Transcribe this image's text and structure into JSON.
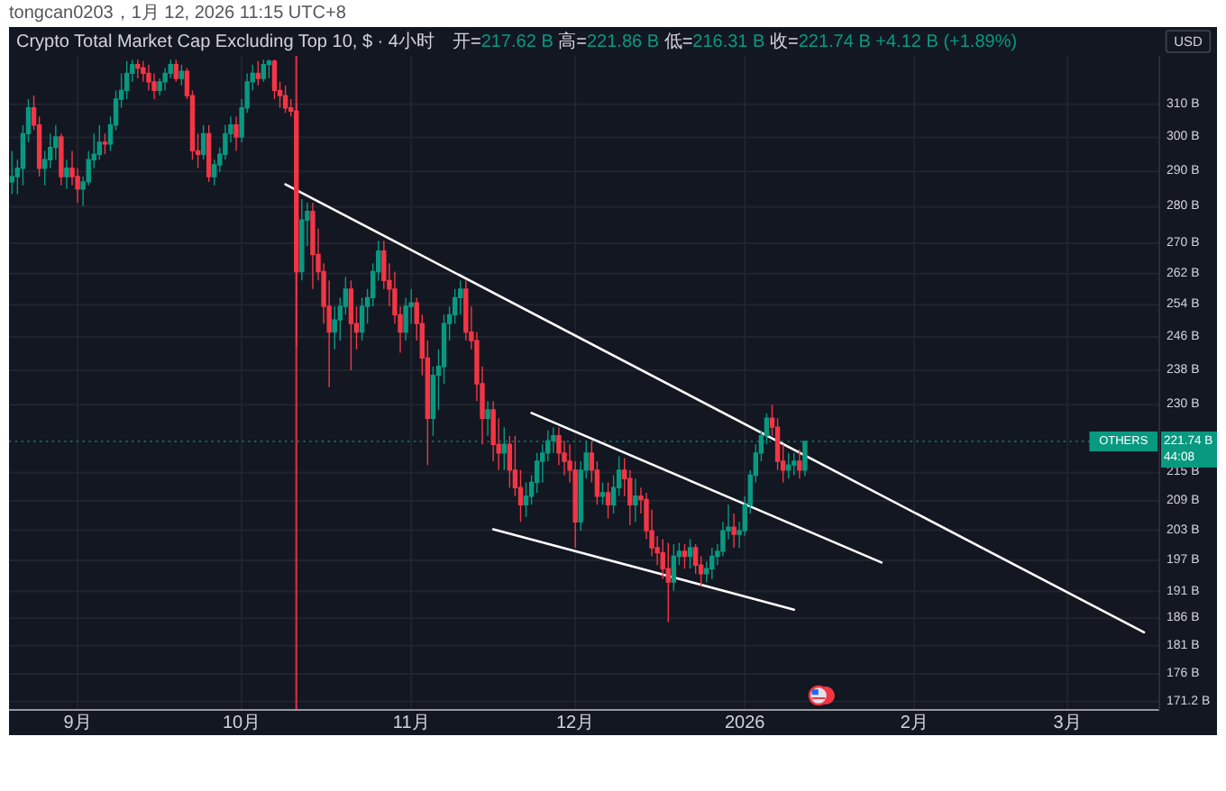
{
  "chart_data": {
    "type": "candlestick",
    "title": "Crypto Total Market Cap Excluding Top 10, $ · 4小时",
    "subtitle": "开=217.62 B 高=221.86 B 低=216.31 B 收=221.74 B +4.12 B (+1.89%)",
    "ylabel": "USD",
    "annotations": [
      "tongcan0203，1月 12, 2026 11:15 UTC+8",
      "221.74 B",
      "44:08"
    ],
    "x": [
      "2025-08-20",
      "2025-08-21",
      "2025-08-22",
      "2025-08-23",
      "2025-08-24",
      "2025-08-25",
      "2025-08-26",
      "2025-08-27",
      "2025-08-28",
      "2025-08-29",
      "2025-08-30",
      "2025-08-31",
      "2025-09-01",
      "2025-09-02",
      "2025-09-03",
      "2025-09-04",
      "2025-09-05",
      "2025-09-06",
      "2025-09-07",
      "2025-09-08",
      "2025-09-09",
      "2025-09-10",
      "2025-09-11",
      "2025-09-12",
      "2025-09-13",
      "2025-09-14",
      "2025-09-15",
      "2025-09-16",
      "2025-09-17",
      "2025-09-18",
      "2025-09-19",
      "2025-09-20",
      "2025-09-21",
      "2025-09-22",
      "2025-09-23",
      "2025-09-24",
      "2025-09-25",
      "2025-09-26",
      "2025-09-27",
      "2025-09-28",
      "2025-09-29",
      "2025-09-30",
      "2025-10-01",
      "2025-10-02",
      "2025-10-03",
      "2025-10-04",
      "2025-10-05",
      "2025-10-06",
      "2025-10-07",
      "2025-10-08",
      "2025-10-09",
      "2025-10-10",
      "2025-10-11",
      "2025-10-12",
      "2025-10-13",
      "2025-10-14",
      "2025-10-15",
      "2025-10-16",
      "2025-10-17",
      "2025-10-18",
      "2025-10-19",
      "2025-10-20",
      "2025-10-21",
      "2025-10-22",
      "2025-10-23",
      "2025-10-24",
      "2025-10-25",
      "2025-10-26",
      "2025-10-27",
      "2025-10-28",
      "2025-10-29",
      "2025-10-30",
      "2025-10-31",
      "2025-11-01",
      "2025-11-02",
      "2025-11-03",
      "2025-11-04",
      "2025-11-05",
      "2025-11-06",
      "2025-11-07",
      "2025-11-08",
      "2025-11-09",
      "2025-11-10",
      "2025-11-11",
      "2025-11-12",
      "2025-11-13",
      "2025-11-14",
      "2025-11-15",
      "2025-11-16",
      "2025-11-17",
      "2025-11-18",
      "2025-11-19",
      "2025-11-20",
      "2025-11-21",
      "2025-11-22",
      "2025-11-23",
      "2025-11-24",
      "2025-11-25",
      "2025-11-26",
      "2025-11-27",
      "2025-11-28",
      "2025-11-29",
      "2025-11-30",
      "2025-12-01",
      "2025-12-02",
      "2025-12-03",
      "2025-12-04",
      "2025-12-05",
      "2025-12-06",
      "2025-12-07",
      "2025-12-08",
      "2025-12-09",
      "2025-12-10",
      "2025-12-11",
      "2025-12-12",
      "2025-12-13",
      "2025-12-14",
      "2025-12-15",
      "2025-12-16",
      "2025-12-17",
      "2025-12-18",
      "2025-12-19",
      "2025-12-20",
      "2025-12-21",
      "2025-12-22",
      "2025-12-23",
      "2025-12-24",
      "2025-12-25",
      "2025-12-26",
      "2025-12-27",
      "2025-12-28",
      "2025-12-29",
      "2025-12-30",
      "2025-12-31",
      "2026-01-01",
      "2026-01-02",
      "2026-01-03",
      "2026-01-04",
      "2026-01-05",
      "2026-01-06",
      "2026-01-07",
      "2026-01-08",
      "2026-01-09",
      "2026-01-10",
      "2026-01-11",
      "2026-01-12"
    ],
    "ohlc": [
      [
        287.0,
        296.0,
        283.5,
        288.5
      ],
      [
        288.5,
        293.4,
        283.5,
        290.9
      ],
      [
        290.9,
        303.7,
        286.0,
        301.1
      ],
      [
        301.1,
        311.6,
        298.5,
        308.9
      ],
      [
        308.9,
        312.7,
        302.1,
        303.7
      ],
      [
        303.7,
        306.3,
        288.5,
        290.9
      ],
      [
        290.9,
        296.0,
        286.0,
        293.4
      ],
      [
        293.4,
        301.1,
        290.9,
        297.0
      ],
      [
        297.0,
        303.7,
        293.4,
        300.1
      ],
      [
        300.1,
        301.1,
        286.0,
        288.5
      ],
      [
        288.5,
        293.4,
        285.0,
        290.9
      ],
      [
        290.9,
        296.0,
        286.0,
        288.5
      ],
      [
        288.5,
        290.9,
        281.1,
        285.0
      ],
      [
        285.0,
        288.5,
        280.2,
        287.0
      ],
      [
        287.0,
        296.0,
        286.0,
        293.4
      ],
      [
        293.4,
        301.1,
        290.9,
        295.0
      ],
      [
        295.0,
        303.7,
        293.4,
        298.5
      ],
      [
        298.5,
        301.1,
        295.0,
        298.0
      ],
      [
        298.0,
        306.3,
        296.0,
        303.7
      ],
      [
        303.7,
        314.3,
        302.1,
        311.6
      ],
      [
        311.6,
        319.7,
        308.9,
        314.3
      ],
      [
        314.3,
        323.6,
        311.6,
        319.7
      ],
      [
        319.7,
        324.1,
        317.0,
        322.5
      ],
      [
        322.5,
        324.1,
        318.1,
        321.4
      ],
      [
        321.4,
        323.6,
        317.0,
        319.7
      ],
      [
        319.7,
        322.5,
        314.3,
        317.0
      ],
      [
        317.0,
        319.7,
        311.6,
        314.3
      ],
      [
        314.3,
        318.1,
        312.7,
        317.0
      ],
      [
        317.0,
        321.4,
        314.3,
        319.7
      ],
      [
        319.7,
        324.1,
        318.1,
        322.5
      ],
      [
        322.5,
        324.1,
        317.0,
        318.1
      ],
      [
        318.1,
        322.5,
        315.9,
        320.3
      ],
      [
        320.3,
        321.4,
        311.6,
        312.7
      ],
      [
        312.7,
        314.3,
        293.4,
        296.0
      ],
      [
        296.0,
        301.1,
        290.9,
        295.0
      ],
      [
        295.0,
        303.7,
        293.4,
        301.1
      ],
      [
        301.1,
        303.7,
        287.0,
        288.5
      ],
      [
        288.5,
        293.4,
        286.0,
        291.9
      ],
      [
        291.9,
        297.0,
        289.9,
        295.0
      ],
      [
        295.0,
        303.7,
        293.4,
        301.1
      ],
      [
        301.1,
        306.3,
        298.5,
        303.7
      ],
      [
        303.7,
        306.3,
        296.0,
        300.1
      ],
      [
        300.1,
        311.6,
        298.5,
        308.9
      ],
      [
        308.9,
        319.7,
        307.4,
        317.0
      ],
      [
        317.0,
        322.5,
        314.3,
        319.7
      ],
      [
        319.7,
        323.6,
        315.9,
        318.1
      ],
      [
        318.1,
        324.1,
        317.0,
        322.5
      ],
      [
        322.5,
        324.1,
        318.1,
        323.6
      ],
      [
        323.6,
        324.1,
        311.6,
        314.3
      ],
      [
        314.3,
        317.0,
        308.9,
        312.7
      ],
      [
        312.7,
        315.9,
        307.4,
        308.9
      ],
      [
        308.9,
        311.6,
        306.3,
        307.9
      ],
      [
        307.9,
        310.5,
        243.8,
        262.5
      ],
      [
        262.5,
        282.1,
        260.2,
        276.3
      ],
      [
        276.3,
        281.1,
        269.3,
        278.7
      ],
      [
        278.7,
        281.1,
        258.0,
        267.0
      ],
      [
        267.0,
        274.0,
        260.2,
        262.5
      ],
      [
        262.5,
        264.7,
        249.3,
        253.6
      ],
      [
        253.6,
        260.2,
        234.0,
        247.2
      ],
      [
        247.2,
        253.6,
        243.0,
        250.2
      ],
      [
        250.2,
        255.8,
        245.1,
        253.6
      ],
      [
        253.6,
        261.1,
        251.5,
        258.0
      ],
      [
        258.0,
        260.2,
        238.0,
        249.3
      ],
      [
        249.3,
        253.6,
        243.0,
        247.2
      ],
      [
        247.2,
        255.8,
        245.1,
        253.6
      ],
      [
        253.6,
        258.0,
        249.3,
        255.8
      ],
      [
        255.8,
        264.7,
        253.6,
        262.5
      ],
      [
        262.5,
        270.7,
        260.2,
        267.9
      ],
      [
        267.9,
        270.7,
        258.0,
        260.2
      ],
      [
        260.2,
        264.7,
        253.6,
        258.0
      ],
      [
        258.0,
        262.5,
        249.3,
        251.5
      ],
      [
        251.5,
        253.6,
        242.2,
        247.2
      ],
      [
        247.2,
        255.8,
        245.1,
        253.6
      ],
      [
        253.6,
        258.0,
        249.3,
        254.5
      ],
      [
        254.5,
        255.8,
        245.1,
        249.3
      ],
      [
        249.3,
        251.5,
        236.8,
        240.9
      ],
      [
        240.9,
        245.1,
        216.6,
        226.9
      ],
      [
        226.9,
        238.9,
        223.0,
        236.8
      ],
      [
        236.8,
        243.0,
        228.8,
        238.9
      ],
      [
        238.9,
        251.5,
        234.8,
        249.3
      ],
      [
        249.3,
        253.6,
        245.1,
        251.5
      ],
      [
        251.5,
        258.0,
        249.3,
        255.8
      ],
      [
        255.8,
        260.2,
        251.5,
        258.0
      ],
      [
        258.0,
        260.2,
        245.1,
        247.2
      ],
      [
        247.2,
        253.6,
        243.0,
        245.1
      ],
      [
        245.1,
        247.2,
        230.8,
        234.8
      ],
      [
        234.8,
        238.9,
        221.1,
        226.9
      ],
      [
        226.9,
        230.8,
        223.0,
        228.8
      ],
      [
        228.8,
        230.8,
        217.4,
        221.1
      ],
      [
        221.1,
        226.9,
        215.5,
        219.2
      ],
      [
        219.2,
        224.9,
        215.5,
        221.1
      ],
      [
        221.1,
        223.0,
        211.8,
        215.5
      ],
      [
        215.5,
        223.0,
        210.0,
        211.8
      ],
      [
        211.8,
        215.5,
        204.7,
        208.2
      ],
      [
        208.2,
        212.9,
        205.7,
        210.0
      ],
      [
        210.0,
        214.4,
        208.2,
        212.9
      ],
      [
        212.9,
        219.2,
        210.7,
        217.4
      ],
      [
        217.4,
        221.1,
        212.9,
        219.2
      ],
      [
        219.2,
        224.2,
        217.4,
        221.9
      ],
      [
        221.9,
        224.9,
        219.2,
        223.0
      ],
      [
        223.0,
        224.9,
        216.6,
        219.2
      ],
      [
        219.2,
        221.9,
        214.4,
        217.4
      ],
      [
        217.4,
        221.1,
        212.9,
        215.5
      ],
      [
        215.5,
        217.4,
        199.5,
        204.7
      ],
      [
        204.7,
        217.4,
        202.9,
        215.5
      ],
      [
        215.5,
        221.9,
        213.7,
        219.2
      ],
      [
        219.2,
        221.9,
        212.9,
        215.5
      ],
      [
        215.5,
        217.4,
        208.2,
        210.0
      ],
      [
        210.0,
        212.9,
        208.2,
        210.7
      ],
      [
        210.7,
        212.9,
        205.4,
        208.2
      ],
      [
        208.2,
        214.4,
        206.4,
        211.8
      ],
      [
        211.8,
        218.5,
        210.0,
        215.5
      ],
      [
        215.5,
        218.1,
        210.0,
        213.7
      ],
      [
        213.7,
        215.5,
        204.0,
        208.2
      ],
      [
        208.2,
        213.7,
        204.7,
        210.0
      ],
      [
        210.0,
        211.8,
        206.4,
        209.3
      ],
      [
        209.3,
        210.7,
        201.2,
        202.9
      ],
      [
        202.9,
        207.2,
        197.8,
        199.5
      ],
      [
        199.5,
        201.9,
        196.1,
        198.5
      ],
      [
        198.5,
        201.2,
        193.4,
        195.4
      ],
      [
        195.4,
        200.5,
        185.3,
        192.8
      ],
      [
        192.8,
        200.2,
        191.1,
        197.8
      ],
      [
        197.8,
        200.5,
        196.1,
        198.8
      ],
      [
        198.8,
        200.2,
        195.4,
        197.8
      ],
      [
        197.8,
        201.2,
        195.4,
        199.5
      ],
      [
        199.5,
        200.2,
        194.4,
        196.1
      ],
      [
        196.1,
        197.8,
        192.1,
        194.4
      ],
      [
        194.4,
        196.8,
        192.8,
        195.4
      ],
      [
        195.4,
        199.5,
        193.4,
        197.8
      ],
      [
        197.8,
        200.2,
        196.1,
        198.8
      ],
      [
        198.8,
        204.7,
        197.8,
        202.9
      ],
      [
        202.9,
        208.2,
        201.2,
        203.6
      ],
      [
        203.6,
        206.4,
        199.5,
        202.2
      ],
      [
        202.2,
        204.7,
        199.5,
        202.9
      ],
      [
        202.9,
        210.0,
        201.9,
        208.2
      ],
      [
        208.2,
        215.5,
        206.4,
        214.4
      ],
      [
        214.4,
        221.1,
        212.9,
        219.2
      ],
      [
        219.2,
        224.2,
        217.4,
        223.0
      ],
      [
        223.0,
        228.0,
        221.1,
        226.9
      ],
      [
        226.9,
        230.0,
        223.0,
        224.9
      ],
      [
        224.9,
        226.9,
        215.5,
        217.4
      ],
      [
        217.4,
        221.1,
        212.9,
        215.5
      ],
      [
        215.5,
        219.2,
        213.7,
        216.6
      ],
      [
        216.6,
        219.2,
        214.4,
        217.4
      ],
      [
        217.4,
        220.0,
        213.7,
        215.5
      ],
      [
        215.5,
        221.86,
        214.2,
        221.74
      ]
    ],
    "series": [
      {
        "type": "line",
        "color": "#ffffff",
        "x": [
          "2025-10-09",
          "2026-03-15"
        ],
        "values": [
          286.3,
          183.4
        ]
      },
      {
        "type": "line",
        "color": "#ffffff",
        "x": [
          "2025-11-23",
          "2026-01-26"
        ],
        "values": [
          228.1,
          196.6
        ]
      },
      {
        "type": "line",
        "color": "#ffffff",
        "x": [
          "2025-11-16",
          "2026-01-10"
        ],
        "values": [
          203.2,
          187.6
        ]
      }
    ],
    "xlim": [
      "2025-08-19T11:00",
      "2026-03-17T19:00"
    ],
    "xticks": [
      {
        "value": "2025-09-01",
        "label": "9月"
      },
      {
        "value": "2025-10-01",
        "label": "10月"
      },
      {
        "value": "2025-11-01",
        "label": "11月"
      },
      {
        "value": "2025-12-01",
        "label": "12月"
      },
      {
        "value": "2026-01-01",
        "label": "2026"
      },
      {
        "value": "2026-02-01",
        "label": "2月"
      },
      {
        "value": "2026-03-01",
        "label": "3月"
      }
    ],
    "ylim": [
      169.8,
      325.3
    ],
    "yticks": [
      {
        "value": 171.2,
        "label": "171.2 B"
      },
      {
        "value": 176,
        "label": "176 B"
      },
      {
        "value": 181,
        "label": "181 B"
      },
      {
        "value": 186,
        "label": "186 B"
      },
      {
        "value": 191,
        "label": "191 B"
      },
      {
        "value": 197,
        "label": "197 B"
      },
      {
        "value": 203,
        "label": "203 B"
      },
      {
        "value": 209,
        "label": "209 B"
      },
      {
        "value": 215,
        "label": "215 B"
      },
      {
        "value": 230,
        "label": "230 B"
      },
      {
        "value": 238,
        "label": "238 B"
      },
      {
        "value": 246,
        "label": "246 B"
      },
      {
        "value": 254,
        "label": "254 B"
      },
      {
        "value": 262,
        "label": "262 B"
      },
      {
        "value": 270,
        "label": "270 B"
      },
      {
        "value": 280,
        "label": "280 B"
      },
      {
        "value": 290,
        "label": "290 B"
      },
      {
        "value": 300,
        "label": "300 B"
      },
      {
        "value": 310,
        "label": "310 B"
      }
    ],
    "log": true,
    "grid": true,
    "ref_lines": [
      {
        "axis": "x",
        "value": "2025-10-11",
        "color": "#d0283f"
      },
      {
        "axis": "y",
        "value": 221.74,
        "label": "OTHERS",
        "color": "#089981",
        "line_style": "dotted"
      }
    ]
  }
}
